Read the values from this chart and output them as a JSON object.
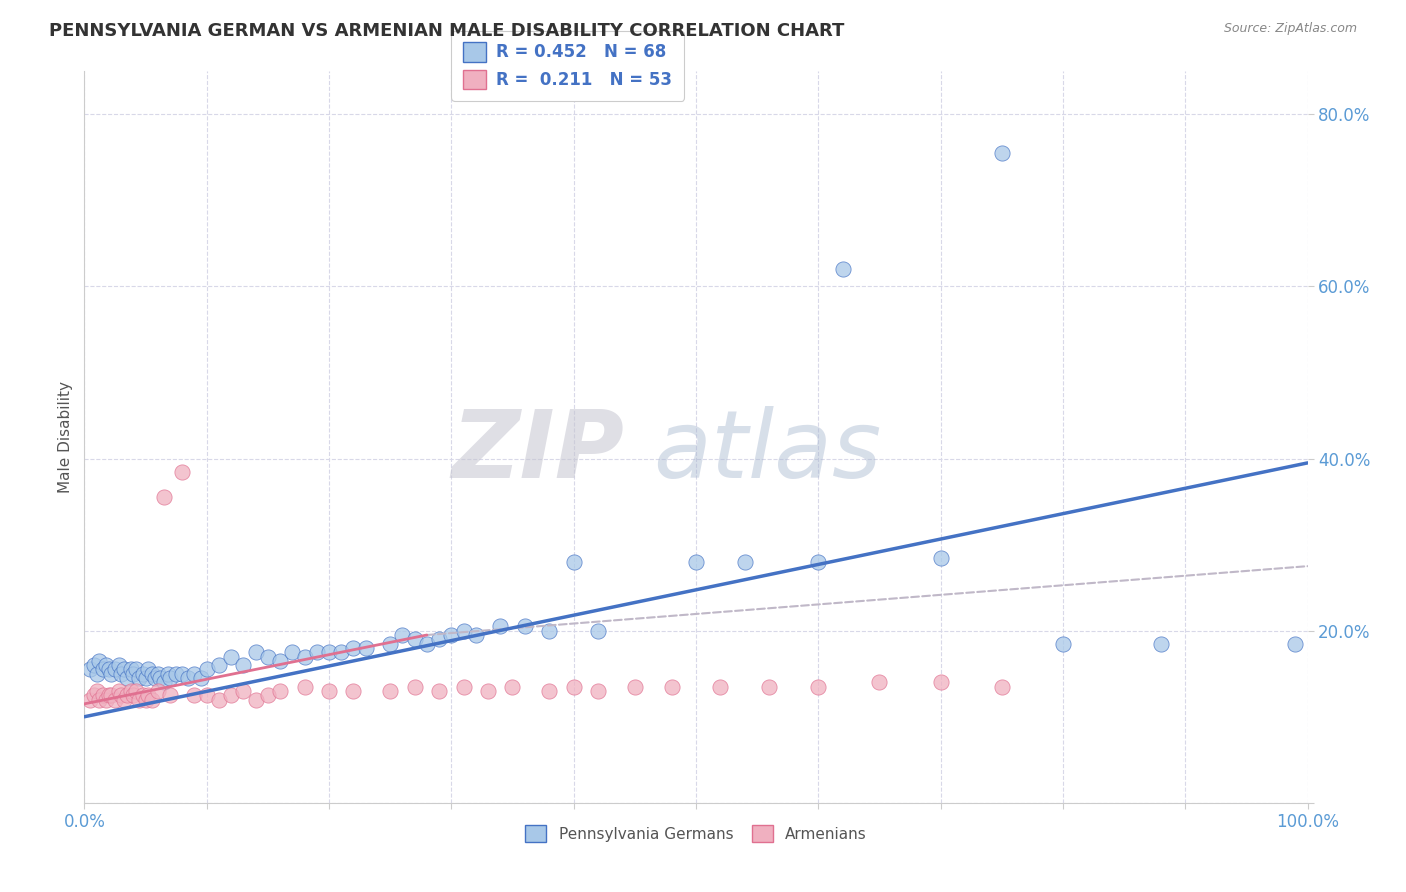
{
  "title": "PENNSYLVANIA GERMAN VS ARMENIAN MALE DISABILITY CORRELATION CHART",
  "source": "Source: ZipAtlas.com",
  "ylabel": "Male Disability",
  "xlim": [
    0,
    1.0
  ],
  "ylim": [
    0.0,
    0.85
  ],
  "xticks": [
    0.0,
    0.1,
    0.2,
    0.3,
    0.4,
    0.5,
    0.6,
    0.7,
    0.8,
    0.9,
    1.0
  ],
  "yticks": [
    0.0,
    0.2,
    0.4,
    0.6,
    0.8
  ],
  "ytick_labels": [
    "",
    "20.0%",
    "40.0%",
    "60.0%",
    "80.0%"
  ],
  "xtick_labels": [
    "0.0%",
    "",
    "",
    "",
    "",
    "",
    "",
    "",
    "",
    "",
    "100.0%"
  ],
  "legend_r1": "R = 0.452",
  "legend_n1": "N = 68",
  "legend_r2": "R =  0.211",
  "legend_n2": "N = 53",
  "color_blue": "#A8C8E8",
  "color_pink": "#F0B0C0",
  "line_blue": "#4472C4",
  "line_pink": "#E07090",
  "line_gray": "#C0B8C8",
  "watermark_zip": "ZIP",
  "watermark_atlas": "atlas",
  "background_color": "#FFFFFF",
  "grid_color": "#D8D8E8",
  "blue_scatter_x": [
    0.005,
    0.008,
    0.01,
    0.012,
    0.015,
    0.018,
    0.02,
    0.022,
    0.025,
    0.028,
    0.03,
    0.032,
    0.035,
    0.038,
    0.04,
    0.042,
    0.045,
    0.048,
    0.05,
    0.052,
    0.055,
    0.058,
    0.06,
    0.062,
    0.065,
    0.068,
    0.07,
    0.075,
    0.08,
    0.085,
    0.09,
    0.095,
    0.1,
    0.11,
    0.12,
    0.13,
    0.14,
    0.15,
    0.16,
    0.17,
    0.18,
    0.19,
    0.2,
    0.21,
    0.22,
    0.23,
    0.25,
    0.26,
    0.27,
    0.28,
    0.29,
    0.3,
    0.31,
    0.32,
    0.34,
    0.36,
    0.38,
    0.4,
    0.42,
    0.5,
    0.54,
    0.6,
    0.62,
    0.7,
    0.75,
    0.8,
    0.88,
    0.99
  ],
  "blue_scatter_y": [
    0.155,
    0.16,
    0.15,
    0.165,
    0.155,
    0.16,
    0.155,
    0.15,
    0.155,
    0.16,
    0.15,
    0.155,
    0.145,
    0.155,
    0.15,
    0.155,
    0.145,
    0.15,
    0.145,
    0.155,
    0.15,
    0.145,
    0.15,
    0.145,
    0.14,
    0.15,
    0.145,
    0.15,
    0.15,
    0.145,
    0.15,
    0.145,
    0.155,
    0.16,
    0.17,
    0.16,
    0.175,
    0.17,
    0.165,
    0.175,
    0.17,
    0.175,
    0.175,
    0.175,
    0.18,
    0.18,
    0.185,
    0.195,
    0.19,
    0.185,
    0.19,
    0.195,
    0.2,
    0.195,
    0.205,
    0.205,
    0.2,
    0.28,
    0.2,
    0.28,
    0.28,
    0.28,
    0.62,
    0.285,
    0.755,
    0.185,
    0.185,
    0.185
  ],
  "pink_scatter_x": [
    0.005,
    0.008,
    0.01,
    0.012,
    0.015,
    0.018,
    0.02,
    0.022,
    0.025,
    0.028,
    0.03,
    0.032,
    0.035,
    0.038,
    0.04,
    0.042,
    0.045,
    0.048,
    0.05,
    0.052,
    0.055,
    0.06,
    0.065,
    0.07,
    0.08,
    0.09,
    0.1,
    0.11,
    0.12,
    0.13,
    0.14,
    0.15,
    0.16,
    0.18,
    0.2,
    0.22,
    0.25,
    0.27,
    0.29,
    0.31,
    0.33,
    0.35,
    0.38,
    0.4,
    0.42,
    0.45,
    0.48,
    0.52,
    0.56,
    0.6,
    0.65,
    0.7,
    0.75
  ],
  "pink_scatter_y": [
    0.12,
    0.125,
    0.13,
    0.12,
    0.125,
    0.12,
    0.125,
    0.125,
    0.12,
    0.13,
    0.125,
    0.12,
    0.125,
    0.13,
    0.125,
    0.13,
    0.12,
    0.125,
    0.12,
    0.125,
    0.12,
    0.13,
    0.355,
    0.125,
    0.385,
    0.125,
    0.125,
    0.12,
    0.125,
    0.13,
    0.12,
    0.125,
    0.13,
    0.135,
    0.13,
    0.13,
    0.13,
    0.135,
    0.13,
    0.135,
    0.13,
    0.135,
    0.13,
    0.135,
    0.13,
    0.135,
    0.135,
    0.135,
    0.135,
    0.135,
    0.14,
    0.14,
    0.135
  ],
  "blue_line_x": [
    0.0,
    1.0
  ],
  "blue_line_y": [
    0.1,
    0.395
  ],
  "pink_line_x": [
    0.0,
    0.28
  ],
  "pink_line_y": [
    0.115,
    0.195
  ],
  "gray_line_x": [
    0.28,
    1.0
  ],
  "gray_line_y": [
    0.195,
    0.275
  ],
  "title_color": "#333333",
  "source_color": "#888888",
  "axis_color": "#5B9BD5",
  "ylabel_color": "#555555"
}
